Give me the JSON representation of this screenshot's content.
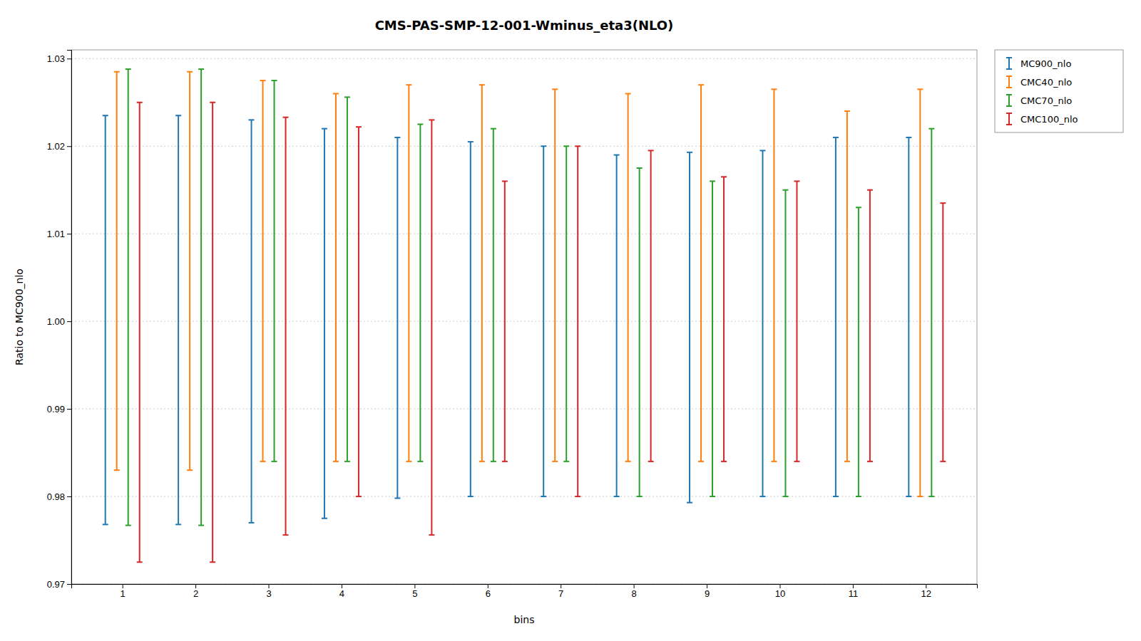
{
  "chart_data": {
    "type": "errorbar",
    "title": "CMS-PAS-SMP-12-001-Wminus_eta3(NLO)",
    "x_label": "bins",
    "y_label": "Ratio to MC900_nlo",
    "x": [
      1,
      2,
      3,
      4,
      5,
      6,
      7,
      8,
      9,
      10,
      11,
      12
    ],
    "xlim": [
      0.3,
      12.7
    ],
    "xticks": [
      1,
      2,
      3,
      4,
      5,
      6,
      7,
      8,
      9,
      10,
      11,
      12
    ],
    "ylim": [
      0.97,
      1.031
    ],
    "yticks": [
      0.97,
      0.98,
      0.99,
      {
        "value": 1,
        "label": "1.00"
      },
      1.01,
      1.02,
      1.03
    ],
    "grid": true,
    "legend": "upper right",
    "series": [
      {
        "name": "MC900_nlo",
        "high": [
          1.0235,
          1.0235,
          1.023,
          1.022,
          1.021,
          1.0205,
          1.02,
          1.019,
          1.0193,
          1.0195,
          1.021,
          1.021
        ],
        "low": [
          0.9768,
          0.9768,
          0.977,
          0.9775,
          0.9798,
          0.98,
          0.98,
          0.98,
          0.9793,
          0.98,
          0.98,
          0.98
        ]
      },
      {
        "name": "CMC40_nlo",
        "high": [
          1.0285,
          1.0285,
          1.0275,
          1.026,
          1.027,
          1.027,
          1.0265,
          1.026,
          1.027,
          1.0265,
          1.024,
          1.0265
        ],
        "low": [
          0.983,
          0.983,
          0.984,
          0.984,
          0.984,
          0.984,
          0.984,
          0.984,
          0.984,
          0.984,
          0.984,
          0.98
        ]
      },
      {
        "name": "CMC70_nlo",
        "high": [
          1.0288,
          1.0288,
          1.0275,
          1.0256,
          1.0225,
          1.022,
          1.02,
          1.0175,
          1.016,
          1.015,
          1.013,
          1.022
        ],
        "low": [
          0.9767,
          0.9767,
          0.984,
          0.984,
          0.984,
          0.984,
          0.984,
          0.98,
          0.98,
          0.98,
          0.98,
          0.98
        ]
      },
      {
        "name": "CMC100_nlo",
        "high": [
          1.025,
          1.025,
          1.0233,
          1.0222,
          1.023,
          1.016,
          1.02,
          1.0195,
          1.0165,
          1.016,
          1.015,
          1.0135
        ],
        "low": [
          0.9725,
          0.9725,
          0.9756,
          0.98,
          0.9756,
          0.984,
          0.98,
          0.984,
          0.984,
          0.984,
          0.984,
          0.984
        ]
      }
    ]
  }
}
